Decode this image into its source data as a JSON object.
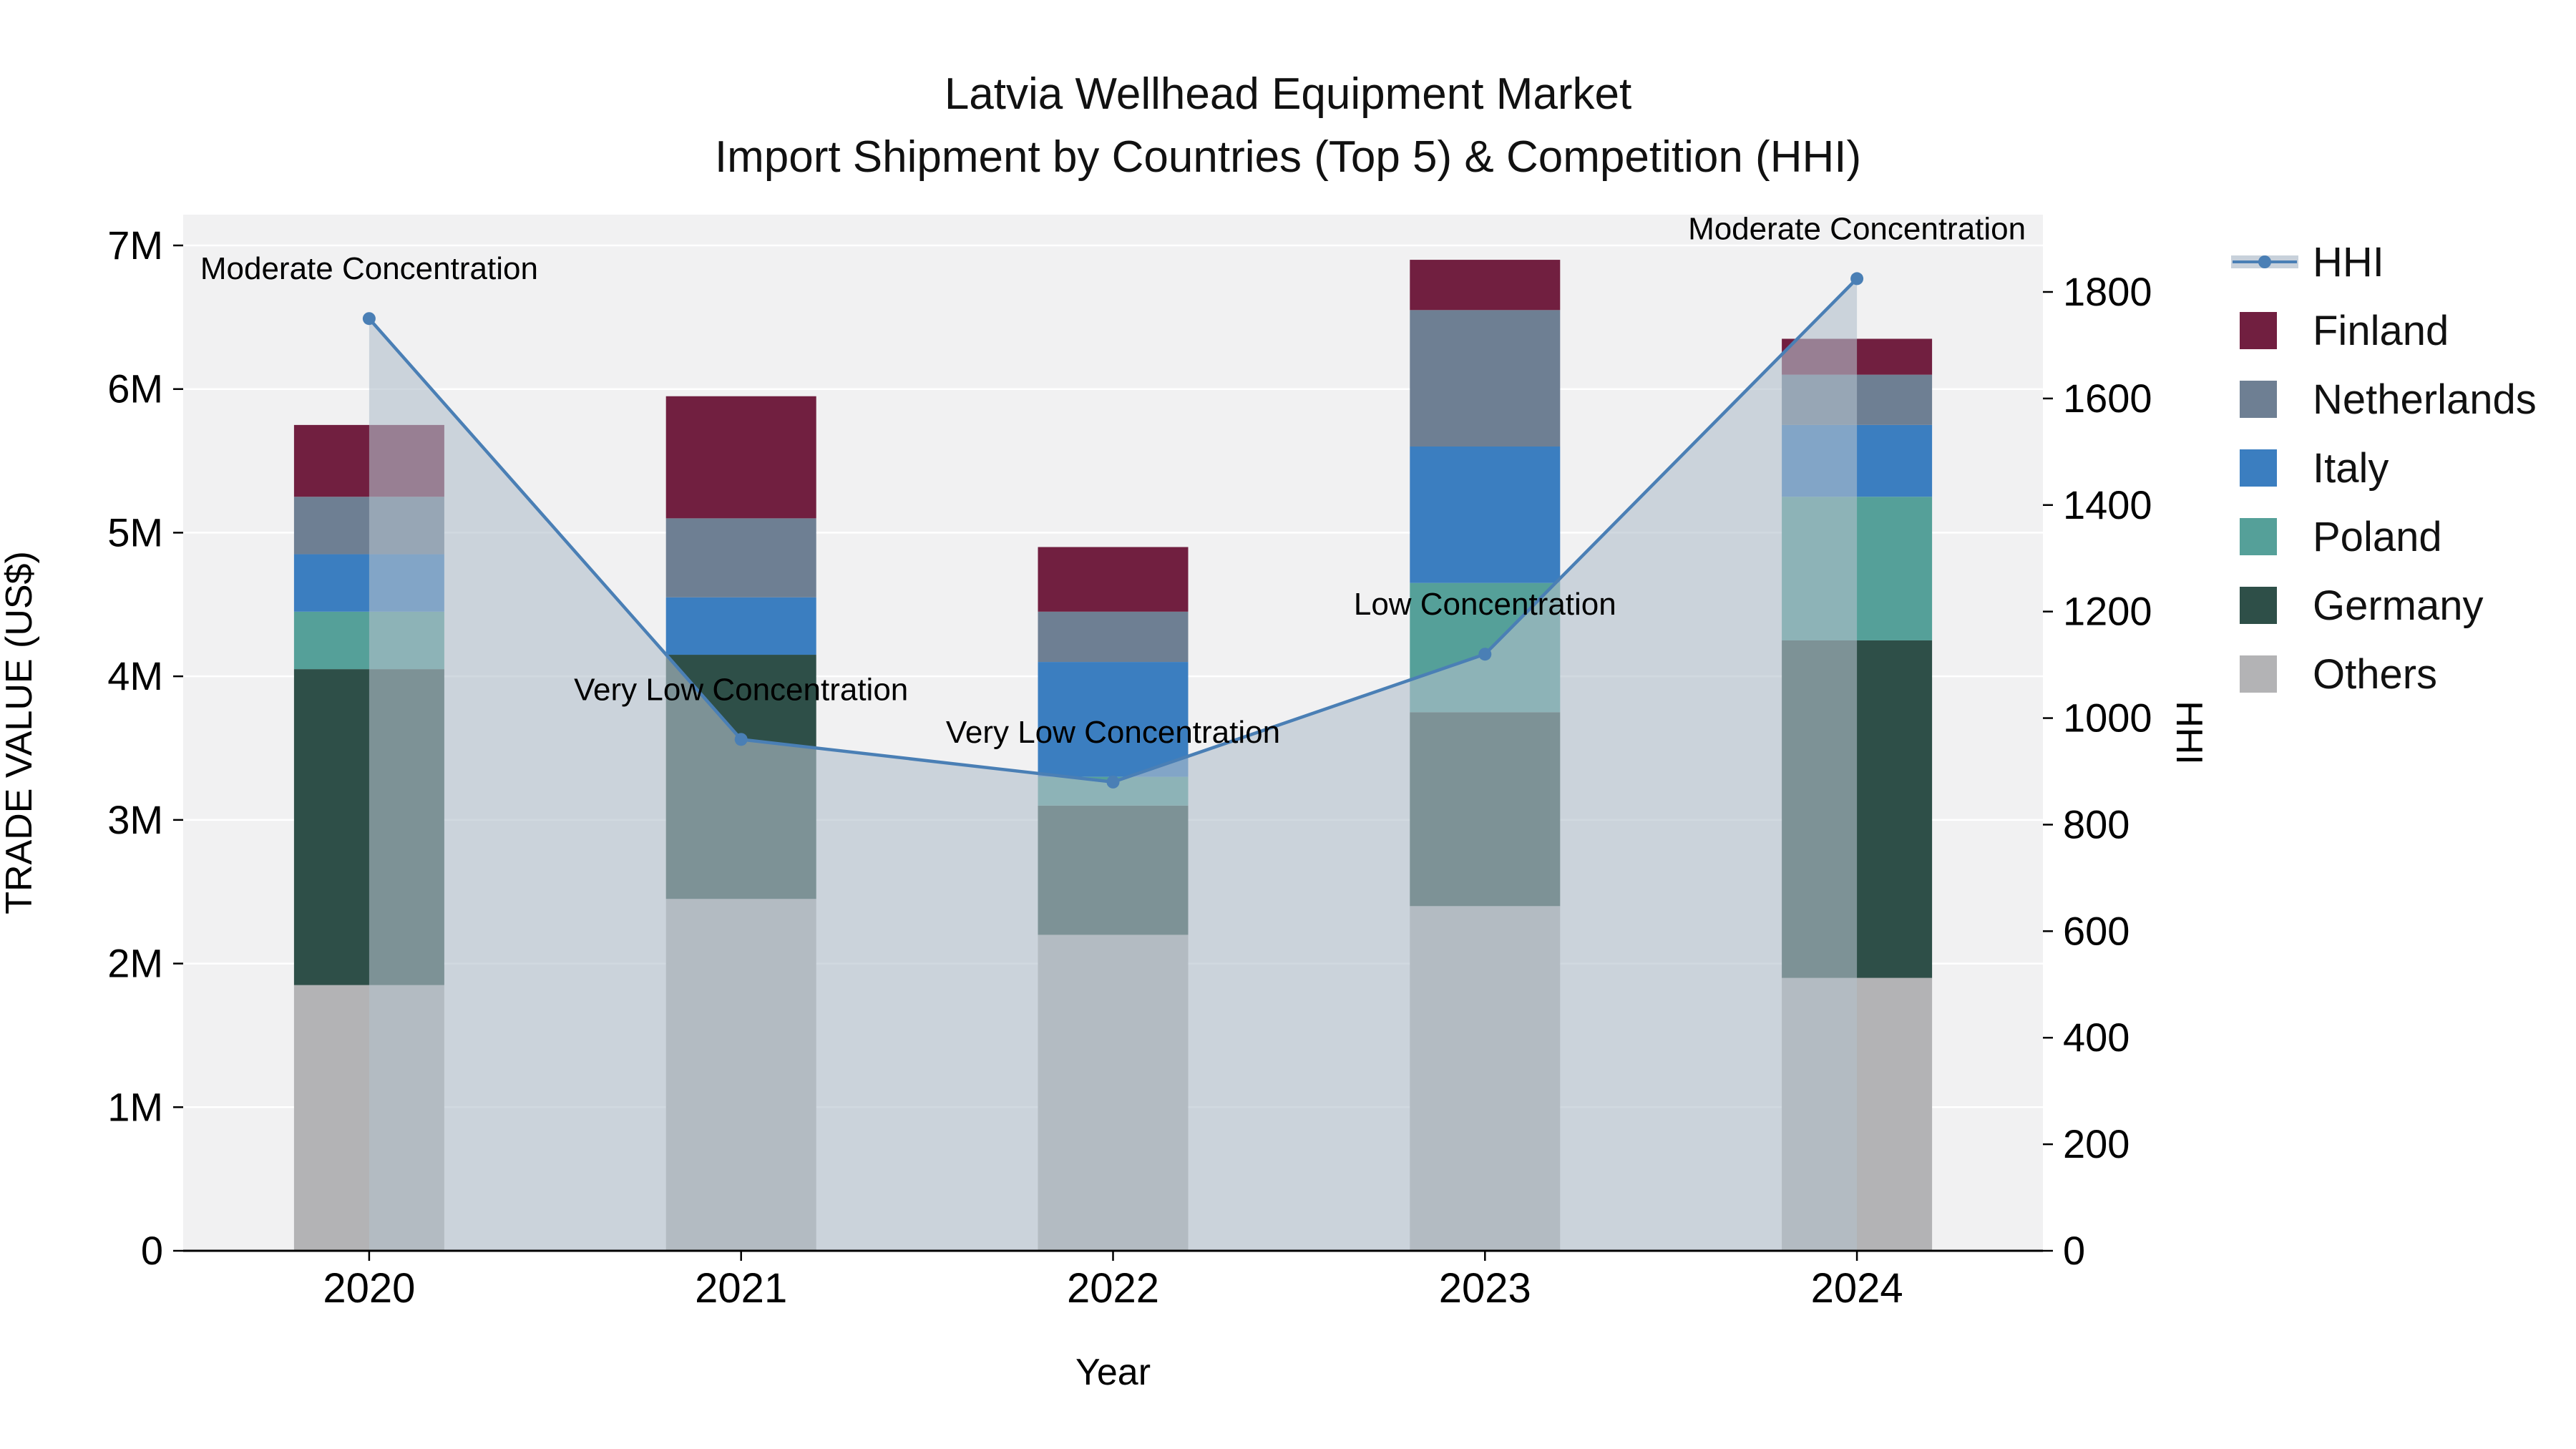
{
  "title": {
    "line1": "Latvia Wellhead Equipment Market",
    "line2": "Import Shipment by Countries (Top 5) & Competition (HHI)"
  },
  "chart_data": {
    "type": "bar",
    "subtype": "stacked-bars-with-hhi-line-and-area",
    "values_unit": "Million US$",
    "categories": [
      "2020",
      "2021",
      "2022",
      "2023",
      "2024"
    ],
    "series": [
      {
        "name": "Others",
        "color": "#b3b3b5",
        "values": [
          1.85,
          2.45,
          2.2,
          2.4,
          1.9
        ]
      },
      {
        "name": "Germany",
        "color": "#2e4f48",
        "values": [
          2.2,
          1.7,
          0.9,
          1.35,
          2.35
        ]
      },
      {
        "name": "Poland",
        "color": "#55a099",
        "values": [
          0.4,
          0.0,
          0.2,
          0.9,
          1.0
        ]
      },
      {
        "name": "Italy",
        "color": "#3b7ec0",
        "values": [
          0.4,
          0.4,
          0.8,
          0.95,
          0.5
        ]
      },
      {
        "name": "Netherlands",
        "color": "#6e7f93",
        "values": [
          0.4,
          0.55,
          0.35,
          0.95,
          0.35
        ]
      },
      {
        "name": "Finland",
        "color": "#711f40",
        "values": [
          0.5,
          0.85,
          0.45,
          0.35,
          0.25
        ]
      }
    ],
    "line": {
      "name": "HHI",
      "color": "#4a7fb5",
      "area_color": "#b3bfcc",
      "area_opacity": 0.6,
      "values": [
        1750,
        960,
        880,
        1120,
        1825
      ]
    },
    "annotations": [
      "Moderate Concentration",
      "Very Low Concentration",
      "Very Low Concentration",
      "Low Concentration",
      "Moderate Concentration"
    ],
    "xlabel": "Year",
    "ylabel": "TRADE VALUE (US$)",
    "y2label": "HHI",
    "ylim_millions": [
      0,
      7
    ],
    "y_ticks": [
      "0",
      "1M",
      "2M",
      "3M",
      "4M",
      "5M",
      "6M",
      "7M"
    ],
    "y2_ticks": [
      0,
      200,
      400,
      600,
      800,
      1000,
      1200,
      1400,
      1600,
      1800
    ],
    "grid": true,
    "legend_position": "right"
  },
  "legend": {
    "items": [
      {
        "label": "HHI",
        "type": "line",
        "color": "#4a7fb5"
      },
      {
        "label": "Finland",
        "type": "swatch",
        "color": "#711f40"
      },
      {
        "label": "Netherlands",
        "type": "swatch",
        "color": "#6e7f93"
      },
      {
        "label": "Italy",
        "type": "swatch",
        "color": "#3b7ec0"
      },
      {
        "label": "Poland",
        "type": "swatch",
        "color": "#55a099"
      },
      {
        "label": "Germany",
        "type": "swatch",
        "color": "#2e4f48"
      },
      {
        "label": "Others",
        "type": "swatch",
        "color": "#b3b3b5"
      }
    ]
  }
}
